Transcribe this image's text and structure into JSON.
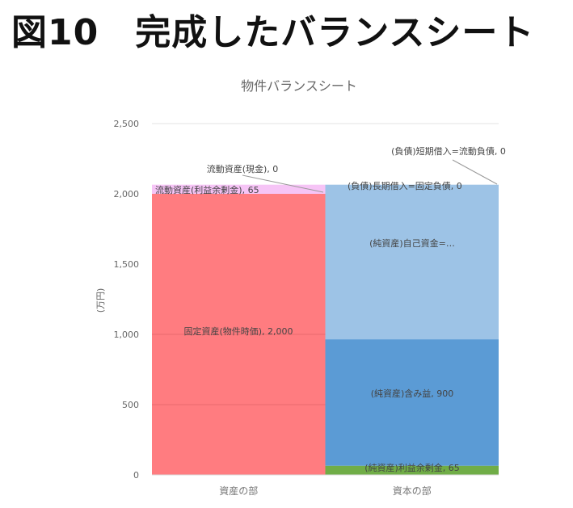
{
  "heading": "図10　完成したバランスシート",
  "chart_data": {
    "type": "bar",
    "stacked": true,
    "title": "物件バランスシート",
    "xlabel": "",
    "ylabel": "(万円)",
    "ylim": [
      0,
      2500
    ],
    "yticks": [
      0,
      500,
      1000,
      1500,
      2000,
      2500
    ],
    "ytick_labels": [
      "0",
      "500",
      "1,000",
      "1,500",
      "2,000",
      "2,500"
    ],
    "categories": [
      "資産の部",
      "資本の部"
    ],
    "grid": true,
    "stacks": [
      {
        "category": "資産の部",
        "segments": [
          {
            "name": "固定資産(物件時価)",
            "value": 2000,
            "label": "固定資産(物件時価), 2,000",
            "color": "#ff7c80"
          },
          {
            "name": "流動資産(利益余剰金)",
            "value": 65,
            "label": "流動資産(利益余剰金), 65",
            "color": "#f6c4f6"
          },
          {
            "name": "流動資産(現金)",
            "value": 0,
            "label": "流動資産(現金), 0",
            "color": "#f6c4f6"
          }
        ]
      },
      {
        "category": "資本の部",
        "segments": [
          {
            "name": "(純資産)利益余剰金",
            "value": 65,
            "label": "(純資産)利益余剰金, 65",
            "color": "#70ad47"
          },
          {
            "name": "(純資産)含み益",
            "value": 900,
            "label": "(純資産)含み益, 900",
            "color": "#5b9bd5"
          },
          {
            "name": "(純資産)自己資金",
            "value": 1100,
            "label": "(純資産)自己資金=…",
            "color": "#9dc3e6"
          },
          {
            "name": "(負債)長期借入=固定負債",
            "value": 0,
            "label": "(負債)長期借入=固定負債, 0",
            "color": "#9dc3e6"
          },
          {
            "name": "(負債)短期借入=流動負債",
            "value": 0,
            "label": "(負債)短期借入=流動負債, 0",
            "color": "#9dc3e6"
          }
        ]
      }
    ]
  }
}
